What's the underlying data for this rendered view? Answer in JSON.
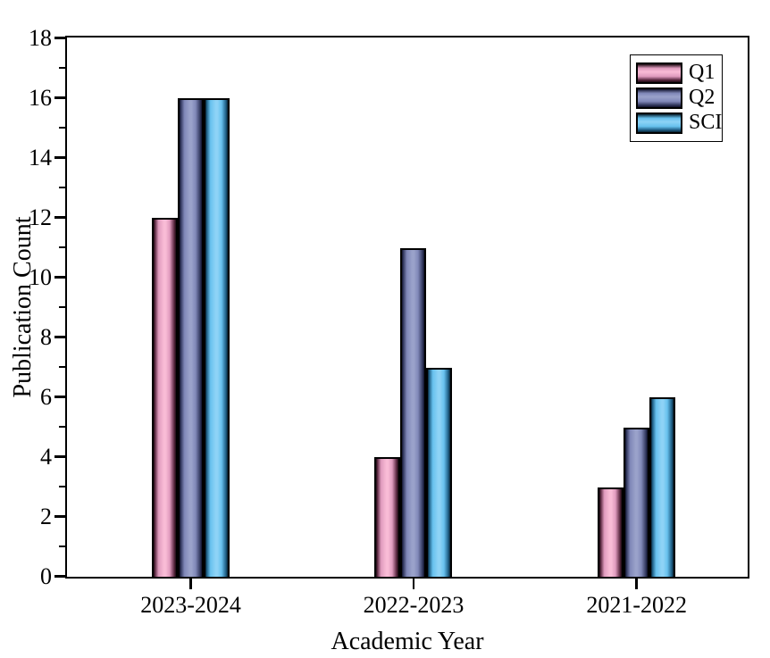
{
  "figure": {
    "background": "#ffffff",
    "axis_color": "#000000",
    "bar_outline_color": "#000000"
  },
  "chart_data": {
    "type": "bar",
    "title": "",
    "xlabel": "Academic Year",
    "ylabel": "Publication Count",
    "categories": [
      "2023-2024",
      "2022-2023",
      "2021-2022"
    ],
    "series": [
      {
        "name": "Q1",
        "values": [
          12,
          4,
          3
        ],
        "colors": {
          "light": "#f9bcd6",
          "mid": "#e09bbe",
          "dark": "#5a2840",
          "edge": "#1c0a12"
        }
      },
      {
        "name": "Q2",
        "values": [
          16,
          11,
          5
        ],
        "colors": {
          "light": "#9aa2ca",
          "mid": "#8088b8",
          "dark": "#33395f",
          "edge": "#10122b"
        }
      },
      {
        "name": "SCI",
        "values": [
          16,
          7,
          6
        ],
        "colors": {
          "light": "#8ed3f6",
          "mid": "#67c1ee",
          "dark": "#1f5e85",
          "edge": "#092433"
        }
      }
    ],
    "ylim": [
      0,
      18
    ],
    "ytick_major_step": 2,
    "ytick_minor_step": 1,
    "grid": false,
    "legend_position": "top-right",
    "legend_entries": [
      "Q1",
      "Q2",
      "SCI"
    ]
  }
}
